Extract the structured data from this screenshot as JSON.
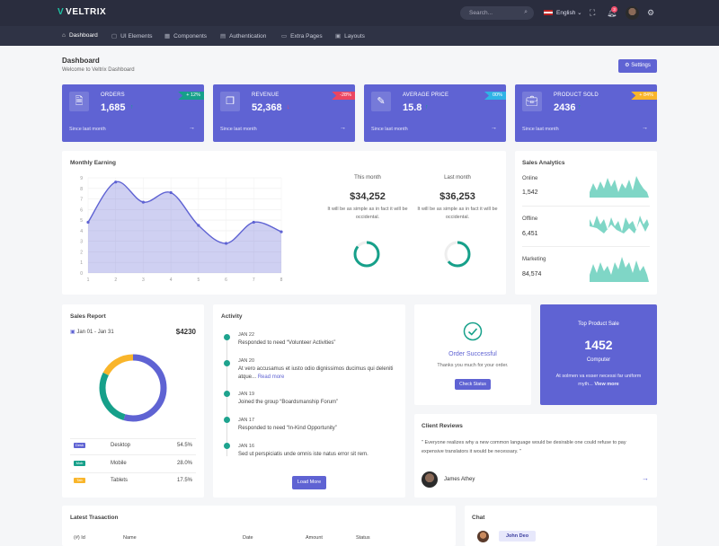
{
  "brand": {
    "name": "VELTRIX"
  },
  "header": {
    "search_placeholder": "Search...",
    "language": "English",
    "notif_count": "3"
  },
  "nav": [
    "Dashboard",
    "UI Elements",
    "Components",
    "Authentication",
    "Extra Pages",
    "Layouts"
  ],
  "page": {
    "title": "Dashboard",
    "subtitle": "Welcome to Veltrix Dashboard",
    "settings": "Settings"
  },
  "stats": [
    {
      "label": "ORDERS",
      "value": "1,685",
      "change": "+ 12%",
      "since": "Since last month",
      "color": "#16a08a",
      "arrow": "↑"
    },
    {
      "label": "REVENUE",
      "value": "52,368",
      "change": "-28%",
      "since": "Since last month",
      "color": "#ec4561",
      "arrow": "↓"
    },
    {
      "label": "AVERAGE PRICE",
      "value": "15.8",
      "change": "00%",
      "since": "Since last month",
      "color": "#2fb3e6",
      "arrow": "↑"
    },
    {
      "label": "PRODUCT SOLD",
      "value": "2436",
      "change": "+ 84%",
      "since": "Since last month",
      "color": "#f9b52a",
      "arrow": "↑"
    }
  ],
  "monthly": {
    "title": "Monthly Earning",
    "this_label": "This month",
    "this_value": "$34,252",
    "last_label": "Last month",
    "last_value": "$36,253",
    "desc": "It will be as simple as in fact it will be occidental."
  },
  "chart_data": {
    "type": "area",
    "x": [
      1,
      2,
      3,
      4,
      5,
      6,
      7,
      8
    ],
    "values": [
      4.8,
      8.6,
      6.7,
      7.6,
      4.5,
      2.8,
      4.8,
      3.9
    ],
    "xlim": [
      1,
      8
    ],
    "ylim": [
      0,
      9
    ],
    "yticks": [
      0,
      1,
      2,
      3,
      4,
      5,
      6,
      7,
      8,
      9
    ],
    "xticks": [
      1,
      2,
      3,
      4,
      5,
      6,
      7,
      8
    ],
    "color": "#5f63d3",
    "title": "",
    "xlabel": "",
    "ylabel": ""
  },
  "analytics": {
    "title": "Sales Analytics",
    "items": [
      {
        "label": "Online",
        "value": "1,542"
      },
      {
        "label": "Offline",
        "value": "6,451"
      },
      {
        "label": "Marketing",
        "value": "84,574"
      }
    ]
  },
  "report": {
    "title": "Sales Report",
    "range": "Jan 01 - Jan 31",
    "total": "$4230",
    "rows": [
      {
        "tag": "Desk",
        "name": "Desktop",
        "pct": "54.5%",
        "color": "#5f63d3"
      },
      {
        "tag": "Mob",
        "name": "Mobile",
        "pct": "28.0%",
        "color": "#16a08a"
      },
      {
        "tag": "Tab",
        "name": "Tablets",
        "pct": "17.5%",
        "color": "#f9b52a"
      }
    ]
  },
  "activity": {
    "title": "Activity",
    "items": [
      {
        "date": "JAN 22",
        "text": "Responded to need “Volunteer Activities”"
      },
      {
        "date": "JAN 20",
        "text": "At vero accusamus et iusto odio dignissimos ducimus qui deleniti atque...",
        "link": "Read more"
      },
      {
        "date": "JAN 19",
        "text": "Joined the group “Boardsmanship Forum”"
      },
      {
        "date": "JAN 17",
        "text": "Responded to need “In-Kind Opportunity”"
      },
      {
        "date": "JAN 16",
        "text": "Sed ut perspiciatis unde omnis iste natus error sit rem."
      }
    ],
    "load_more": "Load More"
  },
  "order": {
    "title": "Order Successful",
    "text": "Thanks you much for your order.",
    "button": "Check Status"
  },
  "top": {
    "title": "Top Product Sale",
    "value": "1452",
    "label": "Computer",
    "desc": "At solmen va esser necessi far uniform myth...",
    "link": "View more"
  },
  "reviews": {
    "title": "Client Reviews",
    "quote": "\" Everyone realizes why a new common language would be desirable one could refuse to pay expensive translators it would be necessary. \"",
    "author": "James Athey"
  },
  "transactions": {
    "title": "Latest Trasaction",
    "columns": [
      "(#) Id",
      "Name",
      "Date",
      "Amount",
      "Status"
    ]
  },
  "chat": {
    "title": "Chat",
    "user": "John Deo"
  }
}
